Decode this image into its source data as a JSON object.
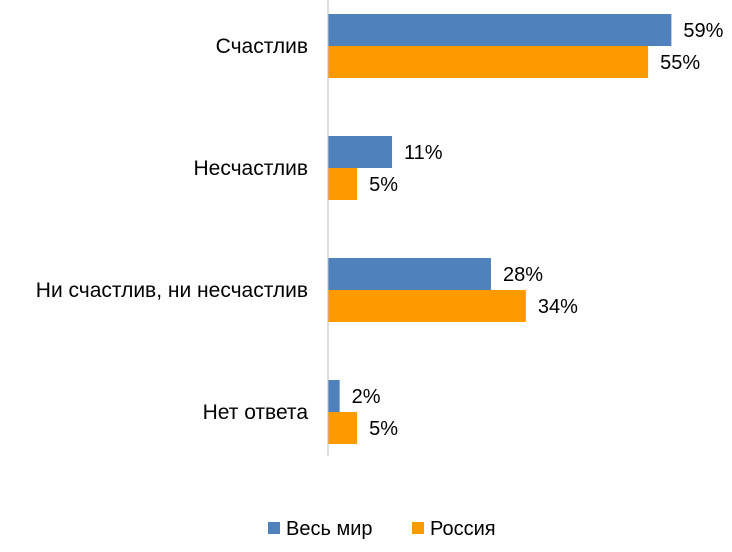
{
  "chart_data": {
    "type": "bar",
    "orientation": "horizontal",
    "categories": [
      "Счастлив",
      "Несчастлив",
      "Ни счастлив, ни несчастлив",
      "Нет ответа"
    ],
    "series": [
      {
        "name": "Весь мир",
        "values": [
          59,
          11,
          28,
          2
        ],
        "labels": [
          "59%",
          "11%",
          "28%",
          "2%"
        ],
        "color": "#4f81bd"
      },
      {
        "name": "Россия",
        "values": [
          55,
          5,
          34,
          5
        ],
        "labels": [
          "55%",
          "5%",
          "34%",
          "5%"
        ],
        "color": "#ff9900"
      }
    ],
    "unit": "%",
    "xlim": [
      0,
      70
    ],
    "grid": false,
    "legend_position": "bottom"
  }
}
